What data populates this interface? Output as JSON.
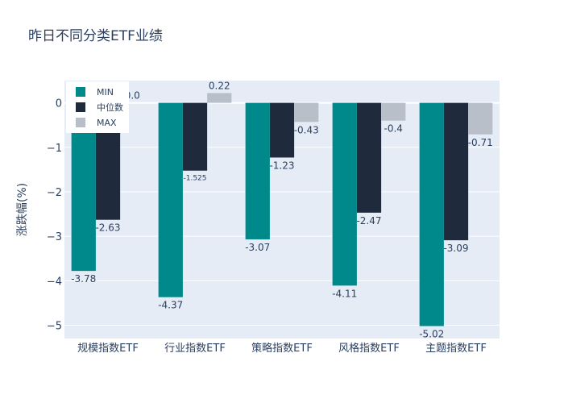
{
  "chart_data": {
    "type": "bar",
    "title": "昨日不同分类ETF业绩",
    "xlabel": "",
    "ylabel": "涨跌幅(%)",
    "ylim": [
      -5.3,
      0.5
    ],
    "yticks": [
      0,
      -1,
      -2,
      -3,
      -4,
      -5
    ],
    "ytick_labels": [
      "0",
      "−1",
      "−2",
      "−3",
      "−4",
      "−5"
    ],
    "grid": true,
    "legend_position": "top-left",
    "categories": [
      "规模指数ETF",
      "行业指数ETF",
      "策略指数ETF",
      "风格指数ETF",
      "主题指数ETF"
    ],
    "series": [
      {
        "name": "MIN",
        "color": "#00898a",
        "values": [
          -3.78,
          -4.37,
          -3.07,
          -4.11,
          -5.02
        ],
        "labels": [
          "-3.78",
          "-4.37",
          "-3.07",
          "-4.11",
          "-5.02"
        ]
      },
      {
        "name": "中位数",
        "color": "#1f2a3c",
        "values": [
          -2.63,
          -1.525,
          -1.23,
          -2.47,
          -3.09
        ],
        "labels": [
          "-2.63",
          "-1.525",
          "-1.23",
          "-2.47",
          "-3.09"
        ]
      },
      {
        "name": "MAX",
        "color": "#b8bfc8",
        "values": [
          0.0,
          0.22,
          -0.43,
          -0.4,
          -0.71
        ],
        "labels": [
          "0.0",
          "0.22",
          "-0.43",
          "-0.4",
          "-0.71"
        ]
      }
    ]
  }
}
